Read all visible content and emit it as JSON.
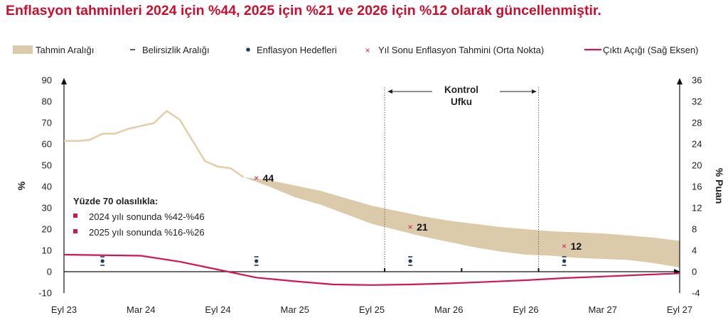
{
  "title": "Enflasyon tahminleri 2024 için %44, 2025 için %21 ve 2026 için %12 olarak güncellenmiştir.",
  "chart_data": {
    "type": "line",
    "legend": {
      "band": "Tahmin Aralığı",
      "uncertainty": "Belirsizlik Aralığı",
      "targets": "Enflasyon Hedefleri",
      "forecast": "Yıl Sonu Enflasyon Tahmini (Orta Nokta)",
      "gap": "Çıktı Açığı (Sağ Eksen)"
    },
    "xlabels": [
      "Eyl 23",
      "Mar 24",
      "Eyl 24",
      "Mar 25",
      "Eyl 25",
      "Mar 26",
      "Eyl 26",
      "Mar 27",
      "Eyl 27"
    ],
    "xrange": [
      0,
      48
    ],
    "ylabel": "%",
    "ylim": [
      -10,
      90
    ],
    "yticks": [
      -10,
      0,
      10,
      20,
      30,
      40,
      50,
      60,
      70,
      80,
      90
    ],
    "y2label": "% Puan",
    "y2lim": [
      -4,
      36
    ],
    "y2ticks": [
      -4,
      0,
      4,
      8,
      12,
      16,
      20,
      24,
      28,
      32,
      36
    ],
    "actual_inflation": {
      "x": [
        0,
        1,
        2,
        3,
        4,
        5,
        6,
        7,
        8,
        9,
        10,
        11,
        12,
        13,
        14
      ],
      "y": [
        61.5,
        61.4,
        61.9,
        64.8,
        64.9,
        67.1,
        68.5,
        69.8,
        75.5,
        71.6,
        61.8,
        51.9,
        49.4,
        48.6,
        44.4
      ]
    },
    "forecast_band": {
      "x": [
        14,
        16,
        18,
        20,
        22,
        24,
        26,
        28,
        30,
        32,
        34,
        36,
        38,
        40,
        42,
        44,
        46,
        48
      ],
      "upper": [
        44.4,
        43,
        40.5,
        38,
        34.5,
        31,
        28.5,
        26,
        24,
        22.5,
        21,
        20,
        19,
        18.5,
        18,
        17,
        16,
        14.5
      ],
      "lower": [
        44.4,
        40,
        35,
        31.5,
        27,
        22.5,
        19.5,
        16.5,
        14,
        11.5,
        9.5,
        8,
        7.5,
        6.5,
        6,
        5.5,
        4,
        2
      ]
    },
    "output_gap": {
      "x": [
        0,
        6,
        9,
        12,
        15,
        18,
        21,
        24,
        27,
        30,
        33,
        36,
        39,
        42,
        45,
        48
      ],
      "y": [
        3.2,
        3,
        1.9,
        0.4,
        -1.1,
        -1.8,
        -2.4,
        -2.5,
        -2.4,
        -2.2,
        -1.9,
        -1.6,
        -1.2,
        -0.9,
        -0.6,
        -0.3
      ]
    },
    "targets": [
      {
        "x": 3,
        "value": 5,
        "low": 3,
        "high": 7
      },
      {
        "x": 15,
        "value": 5,
        "low": 3,
        "high": 7
      },
      {
        "x": 27,
        "value": 5,
        "low": 3,
        "high": 7
      },
      {
        "x": 39,
        "value": 5,
        "low": 3,
        "high": 7
      }
    ],
    "year_end_forecasts": [
      {
        "x": 15,
        "value": 44,
        "label": "44"
      },
      {
        "x": 27,
        "value": 21,
        "label": "21"
      },
      {
        "x": 39,
        "value": 12,
        "label": "12"
      }
    ],
    "control_horizon": {
      "label_line1": "Kontrol",
      "label_line2": "Ufku",
      "x_start": 25,
      "x_end": 37
    },
    "annotation": {
      "heading": "Yüzde 70 olasılıkla:",
      "items": [
        "2024 yılı sonunda %42-%46",
        "2025 yılı sonunda %16-%26"
      ]
    },
    "colors": {
      "band": "#dccbab",
      "actual": "#e3cfaa",
      "gap": "#d4145a",
      "target": "#1f3a5a",
      "forecast": "#d4145a",
      "title": "#c8102e"
    }
  }
}
